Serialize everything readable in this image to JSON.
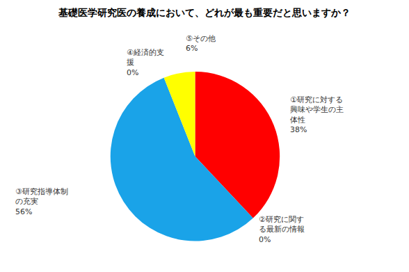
{
  "chart_data": {
    "type": "pie",
    "title": "基礎医学研究医の養成において、どれが最も重要だと思いますか？",
    "categories": [
      "①研究に対する興味や学生の主体性",
      "②研究に関する最新の情報",
      "③研究指導体制の充実",
      "④経済的支援",
      "⑤その他"
    ],
    "values": [
      38,
      0,
      56,
      0,
      6
    ],
    "value_labels": [
      "38%",
      "0%",
      "56%",
      "0%",
      "6%"
    ],
    "colors": [
      "#ff0000",
      "#00b050",
      "#1aa3e8",
      "#7030a0",
      "#ffff00"
    ],
    "data_labels": true
  }
}
